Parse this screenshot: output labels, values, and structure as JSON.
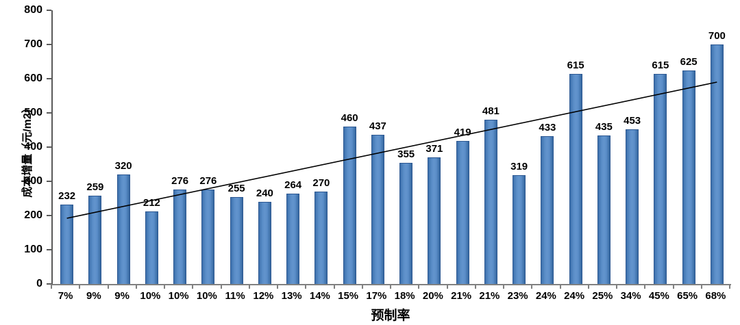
{
  "chart_data": {
    "type": "bar",
    "title": "",
    "xlabel": "预制率",
    "ylabel": "成本增量（元/m2）",
    "categories": [
      "7%",
      "9%",
      "9%",
      "10%",
      "10%",
      "10%",
      "11%",
      "12%",
      "13%",
      "14%",
      "15%",
      "17%",
      "18%",
      "20%",
      "21%",
      "21%",
      "23%",
      "24%",
      "24%",
      "25%",
      "34%",
      "45%",
      "65%",
      "68%"
    ],
    "values": [
      232,
      259,
      320,
      212,
      276,
      276,
      255,
      240,
      264,
      270,
      460,
      437,
      355,
      371,
      419,
      481,
      319,
      433,
      615,
      435,
      453,
      615,
      625,
      700
    ],
    "ylim": [
      0,
      800
    ],
    "ytick_step": 100,
    "grid": false,
    "legend": "none",
    "bar_color": "#4f81bd",
    "bar_border_color": "#2c5791",
    "trendline": {
      "type": "linear",
      "start_value": 192,
      "end_value": 590,
      "color": "#000000"
    }
  }
}
